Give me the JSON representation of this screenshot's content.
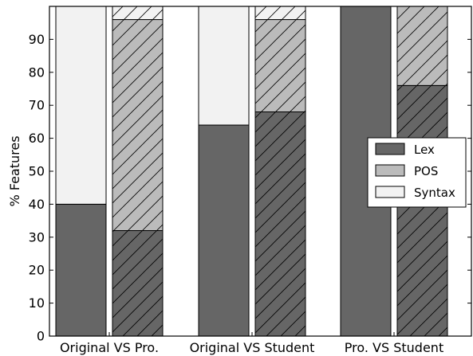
{
  "chart_data": {
    "type": "bar",
    "stacked": true,
    "title": "",
    "xlabel": "",
    "ylabel": "% Features",
    "ylim": [
      0,
      100
    ],
    "yticks": [
      0,
      10,
      20,
      30,
      40,
      50,
      60,
      70,
      80,
      90
    ],
    "grid": false,
    "legend_position": "right",
    "categories": [
      "Original VS Pro.",
      "Original VS Student",
      "Pro. VS Student"
    ],
    "bars_per_category": [
      [
        {
          "hatched": false,
          "values": {
            "Lex": 40,
            "POS": 0,
            "Syntax": 60
          }
        },
        {
          "hatched": true,
          "values": {
            "Lex": 32,
            "POS": 64,
            "Syntax": 4
          }
        }
      ],
      [
        {
          "hatched": false,
          "values": {
            "Lex": 64,
            "POS": 0,
            "Syntax": 36
          }
        },
        {
          "hatched": true,
          "values": {
            "Lex": 68,
            "POS": 28,
            "Syntax": 4
          }
        }
      ],
      [
        {
          "hatched": false,
          "values": {
            "Lex": 100,
            "POS": 0,
            "Syntax": 0
          }
        },
        {
          "hatched": true,
          "values": {
            "Lex": 76,
            "POS": 24,
            "Syntax": 0
          }
        }
      ]
    ],
    "series": [
      {
        "name": "Lex",
        "color": "#666666"
      },
      {
        "name": "POS",
        "color": "#bbbbbb"
      },
      {
        "name": "Syntax",
        "color": "#f2f2f2"
      }
    ]
  }
}
